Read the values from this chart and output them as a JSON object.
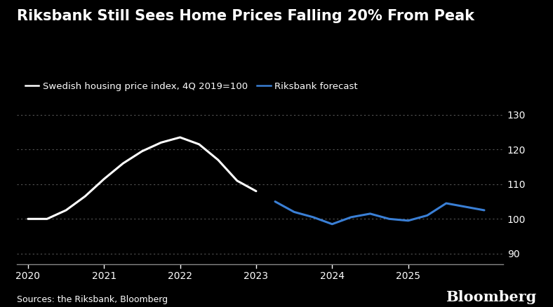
{
  "title": "Riksbank Still Sees Home Prices Falling 20% From Peak",
  "source": "Sources: the Riksbank, Bloomberg",
  "bloomberg_label": "Bloomberg",
  "legend_white_label": "Swedish housing price index, 4Q 2019=100",
  "legend_blue_label": "Riksbank forecast",
  "background_color": "#000000",
  "text_color": "#ffffff",
  "white_line_color": "#ffffff",
  "blue_line_color": "#3a7fd5",
  "grid_color": "#555555",
  "axis_color": "#888888",
  "ylim": [
    87,
    133
  ],
  "yticks": [
    90,
    100,
    110,
    120,
    130
  ],
  "white_x": [
    2020.0,
    2020.25,
    2020.5,
    2020.75,
    2021.0,
    2021.25,
    2021.5,
    2021.75,
    2022.0,
    2022.25,
    2022.5,
    2022.75,
    2023.0
  ],
  "white_y": [
    100.0,
    100.0,
    102.5,
    106.5,
    111.5,
    116.0,
    119.5,
    122.0,
    123.5,
    121.5,
    117.0,
    111.0,
    108.0
  ],
  "blue_x": [
    2023.25,
    2023.5,
    2023.75,
    2024.0,
    2024.25,
    2024.5,
    2024.75,
    2025.0,
    2025.25,
    2025.5,
    2025.75,
    2026.0
  ],
  "blue_y": [
    105.0,
    102.0,
    100.5,
    98.5,
    100.5,
    101.5,
    100.0,
    99.5,
    101.0,
    104.5,
    103.5,
    102.5
  ],
  "xticks": [
    2020,
    2021,
    2022,
    2023,
    2024,
    2025
  ],
  "xlim": [
    2019.85,
    2026.25
  ],
  "title_fontsize": 15,
  "label_fontsize": 9.5,
  "tick_fontsize": 10,
  "source_fontsize": 9,
  "bloomberg_fontsize": 15,
  "line_width": 2.2
}
